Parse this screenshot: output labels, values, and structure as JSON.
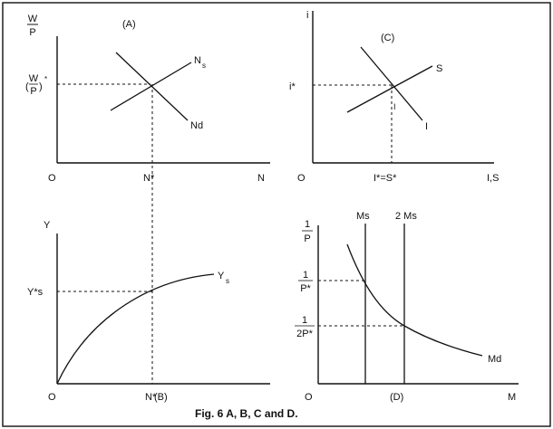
{
  "panel_a": {
    "tag": "(A)",
    "y_axis_num": "W",
    "y_axis_den": "P",
    "x_axis": "N",
    "origin": "O",
    "supply": "N",
    "supply_sub": "s",
    "demand": "Nd",
    "y_star_num": "W",
    "y_star_den": "P",
    "x_star": "N*"
  },
  "panel_c": {
    "tag": "(C)",
    "y_axis": "i",
    "x_axis": "I,S",
    "origin": "O",
    "saving": "S",
    "investment": "I",
    "small_i": "I",
    "y_star": "i*",
    "x_star": "I*=S*"
  },
  "panel_b": {
    "tag": "(B)",
    "y_axis": "Y",
    "origin": "O",
    "output": "Y",
    "output_sub": "s",
    "y_star": "Y*s",
    "x_star": "N*"
  },
  "panel_d": {
    "tag": "(D)",
    "y_axis_num": "1",
    "y_axis_den": "P",
    "x_axis": "M",
    "origin": "O",
    "demand": "Md",
    "ms_label": "Ms",
    "ms2_label": "2 Ms",
    "y1_num": "1",
    "y1_den": "P*",
    "y2_num": "1",
    "y2_den": "2P*"
  },
  "caption": "Fig. 6 A, B, C and D."
}
